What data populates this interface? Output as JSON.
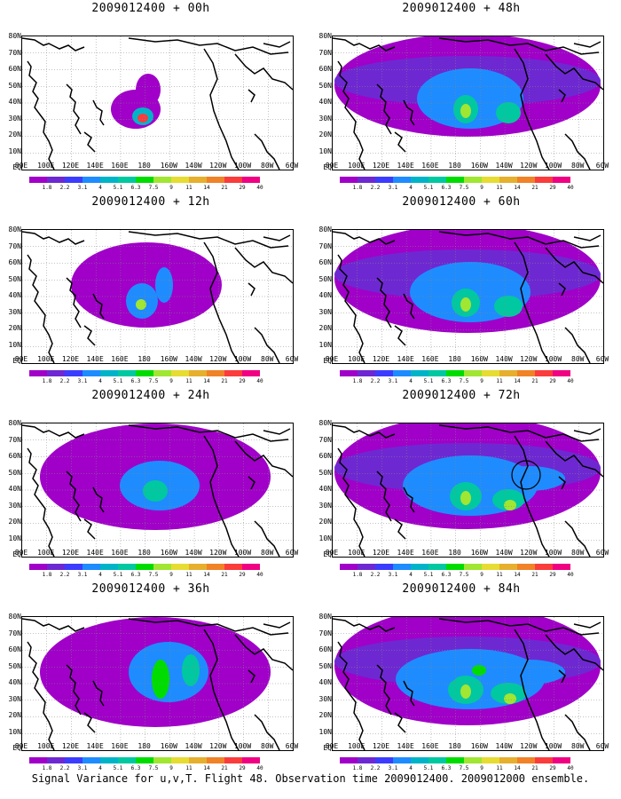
{
  "panels": [
    {
      "title": "2009012400 + 00h",
      "level": 0
    },
    {
      "title": "2009012400 + 12h",
      "level": 1
    },
    {
      "title": "2009012400 + 24h",
      "level": 2
    },
    {
      "title": "2009012400 + 36h",
      "level": 3
    },
    {
      "title": "2009012400 + 48h",
      "level": 4
    },
    {
      "title": "2009012400 + 60h",
      "level": 5
    },
    {
      "title": "2009012400 + 72h",
      "level": 6
    },
    {
      "title": "2009012400 + 84h",
      "level": 7
    }
  ],
  "lat_labels": [
    "80N",
    "70N",
    "60N",
    "50N",
    "40N",
    "30N",
    "20N",
    "10N",
    "EQ"
  ],
  "lon_labels": [
    "80E",
    "100E",
    "120E",
    "140E",
    "160E",
    "180",
    "160W",
    "140W",
    "120W",
    "100W",
    "80W",
    "60W"
  ],
  "colorbar": {
    "labels": [
      "1.8",
      "2.2",
      "3.1",
      "4",
      "5.1",
      "6.3",
      "7.5",
      "9",
      "11",
      "14",
      "21",
      "29",
      "40"
    ],
    "colors": [
      "#a000c8",
      "#6e28d2",
      "#3c3cff",
      "#1e8cff",
      "#00b4c8",
      "#00c8a0",
      "#00dc00",
      "#a0e632",
      "#e6dc32",
      "#e6af2d",
      "#f08228",
      "#fa3c3c",
      "#f00082"
    ]
  },
  "caption": "Signal Variance for u,v,T. Flight 48. Observation time 2009012400. 2009012000 ensemble."
}
